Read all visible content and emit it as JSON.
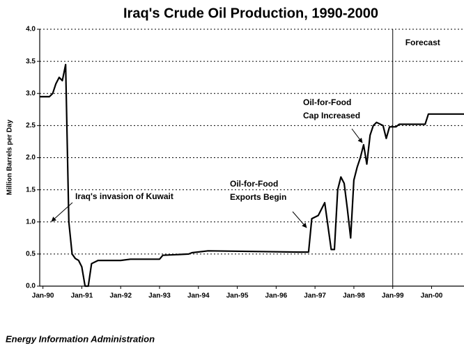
{
  "chart_data": {
    "type": "line",
    "title": "Iraq's Crude Oil Production, 1990-2000",
    "y_label": "Million Barrels per Day",
    "footer": "Energy Information Administration",
    "forecast_label": "Forecast",
    "forecast_start": "1999-01",
    "annotations": [
      {
        "lines": [
          "Iraq's invasion of Kuwait"
        ]
      },
      {
        "lines": [
          "Oil-for-Food",
          "Exports Begin"
        ]
      },
      {
        "lines": [
          "Oil-for-Food",
          "Cap Increased"
        ]
      }
    ],
    "x": [
      "1989-12",
      "1990-03",
      "1990-04",
      "1990-05",
      "1990-06",
      "1990-07",
      "1990-08",
      "1990-09",
      "1990-10",
      "1990-11",
      "1990-12",
      "1991-01",
      "1991-02",
      "1991-03",
      "1991-04",
      "1991-06",
      "1992-01",
      "1992-04",
      "1993-01",
      "1993-02",
      "1993-10",
      "1993-11",
      "1994-04",
      "1996-08",
      "1996-11",
      "1996-12",
      "1997-02",
      "1997-03",
      "1997-04",
      "1997-06",
      "1997-07",
      "1997-08",
      "1997-09",
      "1997-10",
      "1997-11",
      "1997-12",
      "1998-01",
      "1998-02",
      "1998-03",
      "1998-04",
      "1998-05",
      "1998-06",
      "1998-07",
      "1998-08",
      "1998-10",
      "1998-11",
      "1998-12",
      "1999-02",
      "1999-03",
      "1999-11",
      "1999-12",
      "2000-11"
    ],
    "series": [
      {
        "name": "Crude Oil Production",
        "color": "#000000",
        "values": [
          2.95,
          2.95,
          3.0,
          3.15,
          3.25,
          3.2,
          3.45,
          1.0,
          0.5,
          0.43,
          0.4,
          0.3,
          0.0,
          0.0,
          0.35,
          0.4,
          0.4,
          0.42,
          0.42,
          0.48,
          0.5,
          0.52,
          0.55,
          0.53,
          0.53,
          1.05,
          1.1,
          1.2,
          1.3,
          0.57,
          0.57,
          1.5,
          1.7,
          1.6,
          1.2,
          0.75,
          1.65,
          1.85,
          2.0,
          2.2,
          1.9,
          2.35,
          2.5,
          2.55,
          2.5,
          2.3,
          2.48,
          2.48,
          2.52,
          2.52,
          2.68,
          2.68
        ]
      }
    ],
    "xlim": [
      "1989-12",
      "2000-11"
    ],
    "xticks": [
      {
        "value": "1990-01",
        "label": "Jan-90"
      },
      {
        "value": "1991-01",
        "label": "Jan-91"
      },
      {
        "value": "1992-01",
        "label": "Jan-92"
      },
      {
        "value": "1993-01",
        "label": "Jan-93"
      },
      {
        "value": "1994-01",
        "label": "Jan-94"
      },
      {
        "value": "1995-01",
        "label": "Jan-95"
      },
      {
        "value": "1996-01",
        "label": "Jan-96"
      },
      {
        "value": "1997-01",
        "label": "Jan-97"
      },
      {
        "value": "1998-01",
        "label": "Jan-98"
      },
      {
        "value": "1999-01",
        "label": "Jan-99"
      },
      {
        "value": "2000-01",
        "label": "Jan-00"
      }
    ],
    "ylim": [
      0,
      4
    ],
    "yticks": [
      {
        "value": 0,
        "label": "0.0"
      },
      {
        "value": 0.5,
        "label": "0.5"
      },
      {
        "value": 1,
        "label": "1.0"
      },
      {
        "value": 1.5,
        "label": "1.5"
      },
      {
        "value": 2,
        "label": "2.0"
      },
      {
        "value": 2.5,
        "label": "2.5"
      },
      {
        "value": 3,
        "label": "3.0"
      },
      {
        "value": 3.5,
        "label": "3.5"
      },
      {
        "value": 4,
        "label": "4.0"
      }
    ],
    "grid": true
  }
}
